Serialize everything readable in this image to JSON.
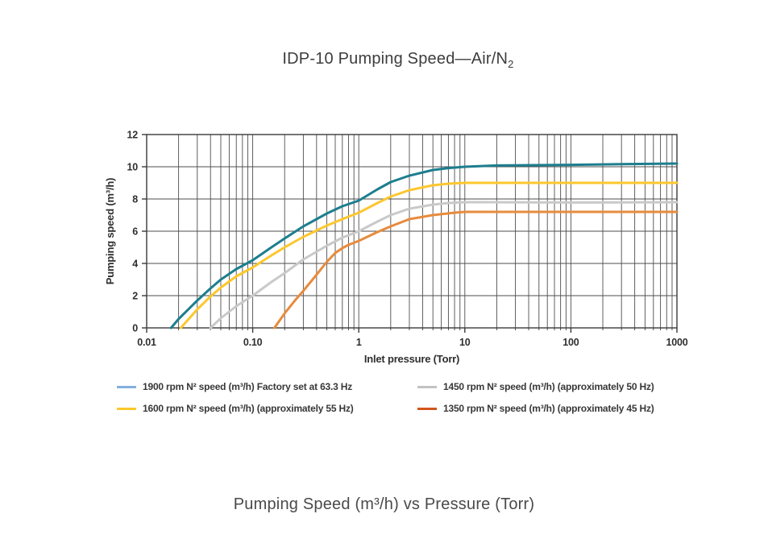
{
  "page": {
    "title_main": "IDP-10 Pumping Speed—Air/N",
    "title_sub": "2",
    "caption": "Pumping Speed (m³/h) vs Pressure (Torr)"
  },
  "chart_data": {
    "type": "line",
    "title": "IDP-10 Pumping Speed—Air/N₂",
    "xlabel": "Inlet pressure (Torr)",
    "ylabel": "Pumping speed (m³/h)",
    "x_scale": "log",
    "xlim": [
      0.01,
      1000
    ],
    "ylim": [
      0,
      12
    ],
    "x_tick_labels": [
      "0.01",
      "0.10",
      "1",
      "10",
      "100",
      "1000"
    ],
    "x_tick_values": [
      0.01,
      0.1,
      1,
      10,
      100,
      1000
    ],
    "y_tick_values": [
      0,
      2,
      4,
      6,
      8,
      10,
      12
    ],
    "grid": {
      "vertical": "log decades with minor lines at 2-9",
      "horizontal": "major every 2",
      "color": "#4e4e4e"
    },
    "legend_position": "below",
    "series": [
      {
        "name": "1900 rpm",
        "legend_label": "1900 rpm N² speed (m³/h) Factory set at 63.3 Hz",
        "line_color": "#1d7e8e",
        "legend_swatch_color": "#85aede",
        "points": [
          [
            0.017,
            0
          ],
          [
            0.02,
            0.55
          ],
          [
            0.03,
            1.7
          ],
          [
            0.04,
            2.45
          ],
          [
            0.05,
            3.0
          ],
          [
            0.07,
            3.65
          ],
          [
            0.1,
            4.2
          ],
          [
            0.15,
            5.0
          ],
          [
            0.2,
            5.55
          ],
          [
            0.3,
            6.3
          ],
          [
            0.5,
            7.1
          ],
          [
            0.7,
            7.55
          ],
          [
            1,
            7.9
          ],
          [
            1.5,
            8.6
          ],
          [
            2,
            9.05
          ],
          [
            3,
            9.45
          ],
          [
            5,
            9.8
          ],
          [
            7,
            9.92
          ],
          [
            10,
            10.0
          ],
          [
            20,
            10.08
          ],
          [
            100,
            10.12
          ],
          [
            300,
            10.16
          ],
          [
            1000,
            10.2
          ]
        ]
      },
      {
        "name": "1600 rpm",
        "legend_label": "1600 rpm N² speed (m³/h) (approximately 55 Hz)",
        "line_color": "#fcc72e",
        "legend_swatch_color": "#fcc72e",
        "points": [
          [
            0.021,
            0
          ],
          [
            0.03,
            1.15
          ],
          [
            0.04,
            1.95
          ],
          [
            0.05,
            2.5
          ],
          [
            0.07,
            3.2
          ],
          [
            0.1,
            3.75
          ],
          [
            0.15,
            4.5
          ],
          [
            0.2,
            5.0
          ],
          [
            0.3,
            5.65
          ],
          [
            0.5,
            6.35
          ],
          [
            0.7,
            6.75
          ],
          [
            1,
            7.15
          ],
          [
            1.5,
            7.75
          ],
          [
            2,
            8.15
          ],
          [
            3,
            8.55
          ],
          [
            5,
            8.85
          ],
          [
            7,
            8.95
          ],
          [
            10,
            9.0
          ],
          [
            100,
            9.0
          ],
          [
            1000,
            9.0
          ]
        ]
      },
      {
        "name": "1450 rpm",
        "legend_label": "1450 rpm N² speed (m³/h) (approximately 50 Hz)",
        "line_color": "#c9c9c9",
        "legend_swatch_color": "#c2c2c2",
        "points": [
          [
            0.04,
            0
          ],
          [
            0.05,
            0.6
          ],
          [
            0.07,
            1.35
          ],
          [
            0.1,
            2.0
          ],
          [
            0.15,
            2.85
          ],
          [
            0.2,
            3.4
          ],
          [
            0.3,
            4.25
          ],
          [
            0.5,
            5.1
          ],
          [
            0.7,
            5.6
          ],
          [
            1,
            6.0
          ],
          [
            1.5,
            6.6
          ],
          [
            2,
            7.0
          ],
          [
            3,
            7.4
          ],
          [
            5,
            7.65
          ],
          [
            7,
            7.75
          ],
          [
            10,
            7.8
          ],
          [
            20,
            7.8
          ],
          [
            100,
            7.78
          ],
          [
            1000,
            7.8
          ]
        ]
      },
      {
        "name": "1350 rpm",
        "legend_label": "1350 rpm N² speed (m³/h) (approximately 45 Hz)",
        "line_color": "#e78b3d",
        "legend_swatch_color": "#d2561c",
        "points": [
          [
            0.16,
            0
          ],
          [
            0.2,
            0.9
          ],
          [
            0.25,
            1.7
          ],
          [
            0.3,
            2.3
          ],
          [
            0.4,
            3.3
          ],
          [
            0.5,
            4.1
          ],
          [
            0.6,
            4.65
          ],
          [
            0.7,
            4.95
          ],
          [
            0.8,
            5.15
          ],
          [
            1,
            5.4
          ],
          [
            1.5,
            5.95
          ],
          [
            2,
            6.3
          ],
          [
            3,
            6.75
          ],
          [
            5,
            7.0
          ],
          [
            8,
            7.15
          ],
          [
            10,
            7.2
          ],
          [
            100,
            7.2
          ],
          [
            1000,
            7.2
          ]
        ]
      }
    ]
  }
}
